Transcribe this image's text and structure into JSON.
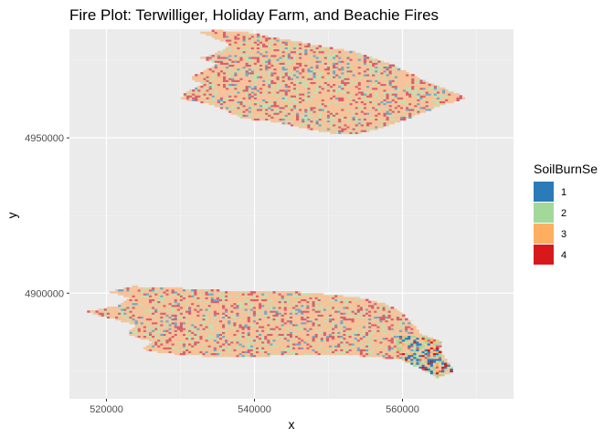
{
  "chart_data": {
    "type": "heatmap",
    "title": "Fire Plot: Terwilliger, Holiday Farm, and Beachie Fires",
    "xlabel": "x",
    "ylabel": "y",
    "xlim": [
      515000,
      575000
    ],
    "ylim": [
      4866000,
      4985000
    ],
    "x_ticks": [
      520000,
      540000,
      560000
    ],
    "x_tick_labels": [
      "520000",
      "540000",
      "560000"
    ],
    "y_ticks": [
      4900000,
      4950000
    ],
    "y_tick_labels": [
      "4900000",
      "4950000"
    ],
    "grid": true,
    "legend": {
      "title": "SoilBurnSe",
      "position": "right",
      "levels": [
        {
          "label": "1",
          "color": "#2B7BB9"
        },
        {
          "label": "2",
          "color": "#A3D89B"
        },
        {
          "label": "3",
          "color": "#FDAE61"
        },
        {
          "label": "4",
          "color": "#D7191C"
        }
      ]
    },
    "series": [
      {
        "extent_x": [
          527000,
          570000
        ],
        "extent_y": [
          4950000,
          4985000
        ],
        "dominant_class": "3"
      },
      {
        "extent_x": [
          517000,
          567000
        ],
        "extent_y": [
          4872000,
          4902000
        ],
        "dominant_class": "3"
      }
    ]
  }
}
